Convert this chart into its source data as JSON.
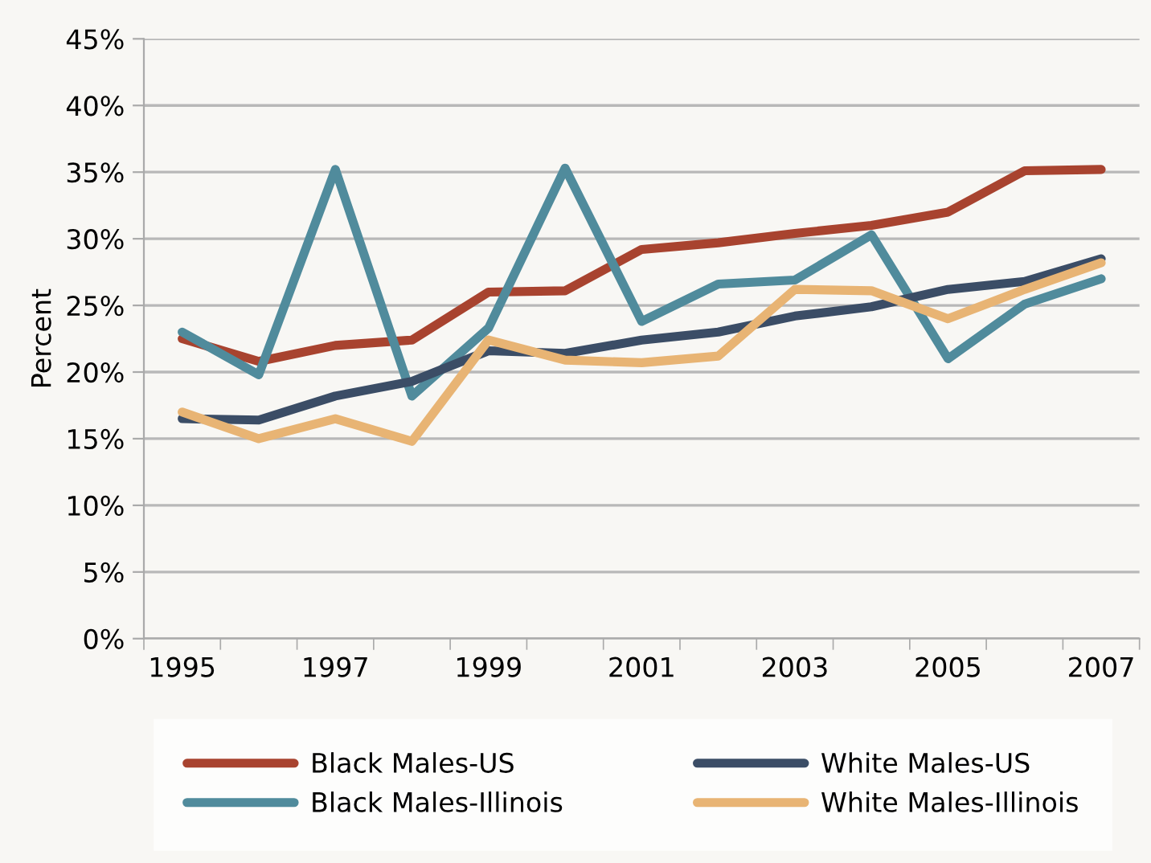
{
  "chart_data": {
    "type": "line",
    "ylabel": "Percent",
    "categories": [
      "1995",
      null,
      "1997",
      null,
      "1999",
      null,
      "2001",
      null,
      "2003",
      null,
      "2005",
      null,
      "2007"
    ],
    "series": [
      {
        "name": "Black Males-US",
        "color": "#a8432f",
        "values": [
          22.5,
          20.8,
          22,
          22.4,
          26,
          26.1,
          29.2,
          29.7,
          30.4,
          31,
          32,
          35.1,
          35.2
        ]
      },
      {
        "name": "Black Males-Illinois",
        "color": "#508b9c",
        "values": [
          23,
          19.8,
          35.2,
          18.2,
          23.3,
          35.3,
          23.8,
          26.6,
          26.9,
          30.3,
          21,
          25.1,
          27
        ]
      },
      {
        "name": "White Males-US",
        "color": "#3b4d66",
        "values": [
          16.5,
          16.4,
          18.2,
          19.3,
          21.6,
          21.4,
          22.4,
          23,
          24.2,
          24.9,
          26.2,
          26.8,
          28.5
        ]
      },
      {
        "name": "White Males-Illinois",
        "color": "#e8b474",
        "values": [
          17,
          15,
          16.5,
          14.8,
          22.4,
          20.9,
          20.7,
          21.2,
          26.2,
          26.1,
          24,
          26.2,
          28.2
        ]
      }
    ],
    "ylim": [
      0,
      45
    ],
    "yticks": [
      {
        "value": 0,
        "label": "0%"
      },
      {
        "value": 5,
        "label": "5%"
      },
      {
        "value": 10,
        "label": "10%"
      },
      {
        "value": 15,
        "label": "15%"
      },
      {
        "value": 20,
        "label": "20%"
      },
      {
        "value": 25,
        "label": "25%"
      },
      {
        "value": 30,
        "label": "30%"
      },
      {
        "value": 35,
        "label": "35%"
      },
      {
        "value": 40,
        "label": "40%"
      },
      {
        "value": 45,
        "label": "45%"
      }
    ],
    "grid": "y",
    "legend": "bottom",
    "marker": "none",
    "line_style": "solid"
  }
}
